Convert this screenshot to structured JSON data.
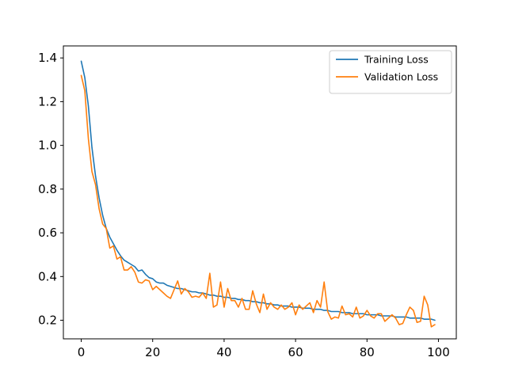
{
  "chart_data": {
    "type": "line",
    "title": "",
    "xlabel": "",
    "ylabel": "",
    "xlim": [
      -5,
      105
    ],
    "ylim": [
      0.115,
      1.455
    ],
    "xticks": [
      0,
      20,
      40,
      60,
      80,
      100
    ],
    "yticks": [
      0.2,
      0.4,
      0.6,
      0.8,
      1.0,
      1.2,
      1.4
    ],
    "grid": false,
    "legend_position": "top-right",
    "series": [
      {
        "name": "Training Loss",
        "color": "#1f77b4",
        "x": [
          0,
          1,
          2,
          3,
          4,
          5,
          6,
          7,
          8,
          9,
          10,
          11,
          12,
          13,
          14,
          15,
          16,
          17,
          18,
          19,
          20,
          21,
          22,
          23,
          24,
          25,
          26,
          27,
          28,
          29,
          30,
          31,
          32,
          33,
          34,
          35,
          36,
          37,
          38,
          39,
          40,
          41,
          42,
          43,
          44,
          45,
          46,
          47,
          48,
          49,
          50,
          51,
          52,
          53,
          54,
          55,
          56,
          57,
          58,
          59,
          60,
          61,
          62,
          63,
          64,
          65,
          66,
          67,
          68,
          69,
          70,
          71,
          72,
          73,
          74,
          75,
          76,
          77,
          78,
          79,
          80,
          81,
          82,
          83,
          84,
          85,
          86,
          87,
          88,
          89,
          90,
          91,
          92,
          93,
          94,
          95,
          96,
          97,
          98,
          99
        ],
        "y": [
          1.385,
          1.31,
          1.18,
          0.99,
          0.86,
          0.76,
          0.68,
          0.62,
          0.58,
          0.55,
          0.52,
          0.495,
          0.475,
          0.465,
          0.455,
          0.445,
          0.425,
          0.43,
          0.41,
          0.395,
          0.39,
          0.375,
          0.37,
          0.37,
          0.36,
          0.355,
          0.35,
          0.345,
          0.345,
          0.34,
          0.335,
          0.33,
          0.33,
          0.325,
          0.325,
          0.32,
          0.315,
          0.315,
          0.31,
          0.31,
          0.305,
          0.305,
          0.3,
          0.3,
          0.295,
          0.295,
          0.29,
          0.29,
          0.285,
          0.285,
          0.28,
          0.28,
          0.275,
          0.275,
          0.27,
          0.27,
          0.265,
          0.265,
          0.265,
          0.26,
          0.26,
          0.26,
          0.255,
          0.255,
          0.255,
          0.25,
          0.25,
          0.25,
          0.245,
          0.245,
          0.24,
          0.24,
          0.24,
          0.235,
          0.235,
          0.235,
          0.23,
          0.23,
          0.23,
          0.23,
          0.225,
          0.225,
          0.225,
          0.225,
          0.22,
          0.22,
          0.22,
          0.22,
          0.215,
          0.215,
          0.215,
          0.215,
          0.21,
          0.21,
          0.21,
          0.21,
          0.205,
          0.205,
          0.205,
          0.2
        ]
      },
      {
        "name": "Validation Loss",
        "color": "#ff7f0e",
        "x": [
          0,
          1,
          2,
          3,
          4,
          5,
          6,
          7,
          8,
          9,
          10,
          11,
          12,
          13,
          14,
          15,
          16,
          17,
          18,
          19,
          20,
          21,
          22,
          23,
          24,
          25,
          26,
          27,
          28,
          29,
          30,
          31,
          32,
          33,
          34,
          35,
          36,
          37,
          38,
          39,
          40,
          41,
          42,
          43,
          44,
          45,
          46,
          47,
          48,
          49,
          50,
          51,
          52,
          53,
          54,
          55,
          56,
          57,
          58,
          59,
          60,
          61,
          62,
          63,
          64,
          65,
          66,
          67,
          68,
          69,
          70,
          71,
          72,
          73,
          74,
          75,
          76,
          77,
          78,
          79,
          80,
          81,
          82,
          83,
          84,
          85,
          86,
          87,
          88,
          89,
          90,
          91,
          92,
          93,
          94,
          95,
          96,
          97,
          98,
          99
        ],
        "y": [
          1.32,
          1.25,
          1.03,
          0.88,
          0.82,
          0.71,
          0.64,
          0.62,
          0.53,
          0.54,
          0.48,
          0.49,
          0.43,
          0.43,
          0.445,
          0.42,
          0.375,
          0.37,
          0.385,
          0.38,
          0.34,
          0.355,
          0.34,
          0.325,
          0.31,
          0.3,
          0.34,
          0.38,
          0.32,
          0.345,
          0.33,
          0.305,
          0.31,
          0.305,
          0.325,
          0.3,
          0.415,
          0.26,
          0.27,
          0.375,
          0.26,
          0.345,
          0.29,
          0.29,
          0.26,
          0.3,
          0.25,
          0.25,
          0.335,
          0.275,
          0.235,
          0.32,
          0.25,
          0.28,
          0.26,
          0.25,
          0.27,
          0.25,
          0.26,
          0.28,
          0.225,
          0.27,
          0.25,
          0.265,
          0.28,
          0.235,
          0.29,
          0.26,
          0.375,
          0.24,
          0.205,
          0.215,
          0.21,
          0.265,
          0.225,
          0.23,
          0.215,
          0.26,
          0.21,
          0.22,
          0.245,
          0.22,
          0.21,
          0.23,
          0.23,
          0.195,
          0.21,
          0.225,
          0.21,
          0.18,
          0.185,
          0.225,
          0.26,
          0.245,
          0.19,
          0.195,
          0.31,
          0.27,
          0.17,
          0.18
        ]
      }
    ]
  }
}
